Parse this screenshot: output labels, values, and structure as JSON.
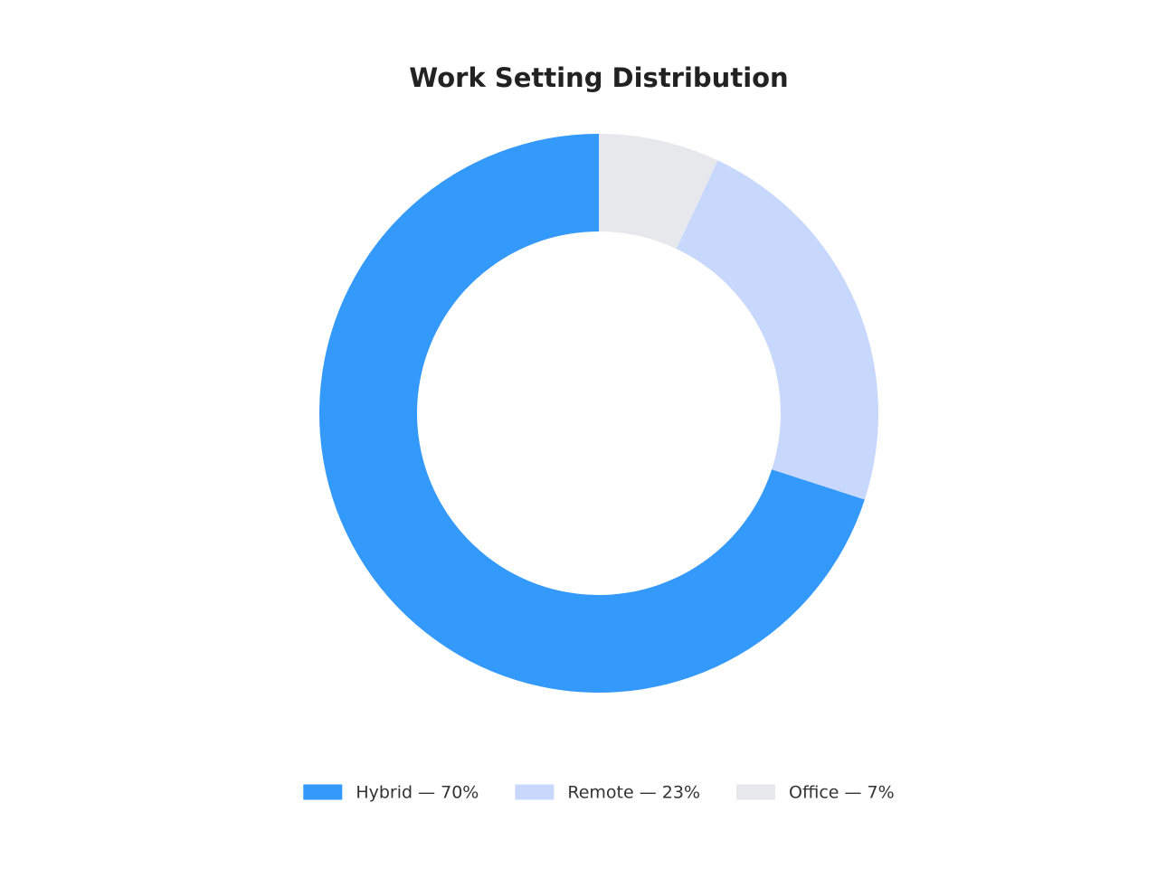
{
  "chart_data": {
    "type": "donut",
    "title": "Work Setting Distribution",
    "categories": [
      "Hybrid — 70%",
      "Remote — 23%",
      "Office — 7%"
    ],
    "values": [
      70,
      23,
      7
    ],
    "colors": [
      "#3399fa",
      "#c8d8fd",
      "#e6e8eb"
    ]
  }
}
